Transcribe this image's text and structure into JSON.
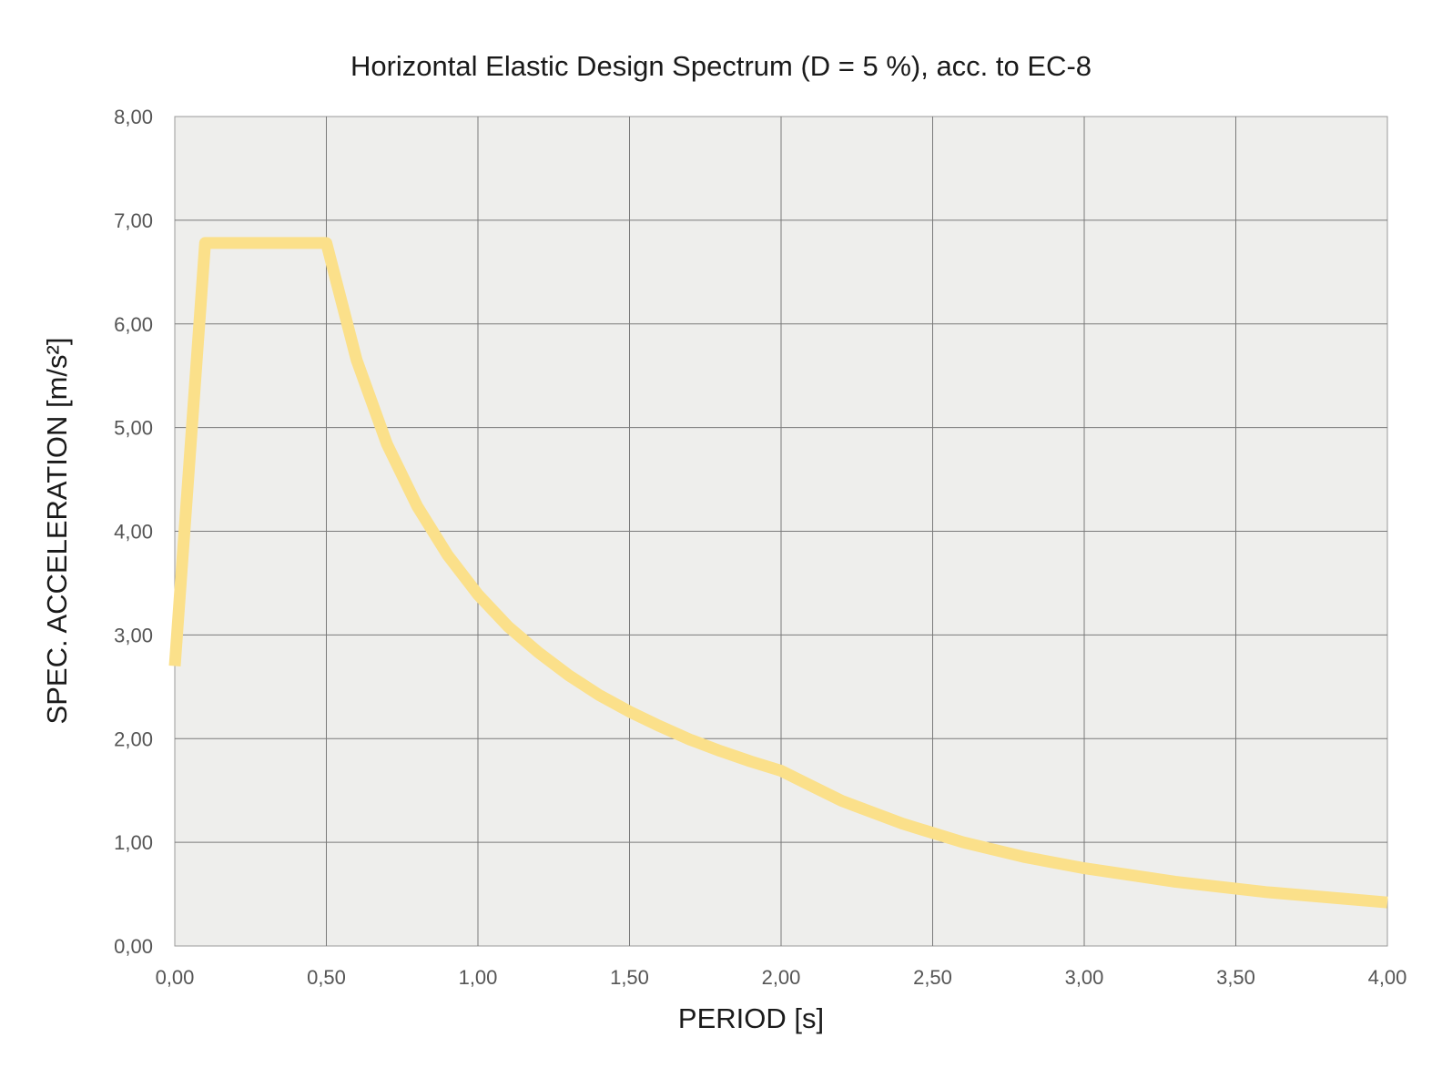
{
  "chart_data": {
    "type": "line",
    "title": "Horizontal Elastic Design Spectrum (D = 5 %), acc. to EC-8",
    "xlabel": "PERIOD [s]",
    "ylabel": "SPEC. ACCELERATION [m/s²]",
    "xlim": [
      0,
      4
    ],
    "ylim": [
      0,
      8
    ],
    "x_ticks": [
      "0,00",
      "0,50",
      "1,00",
      "1,50",
      "2,00",
      "2,50",
      "3,00",
      "3,50",
      "4,00"
    ],
    "y_ticks": [
      "0,00",
      "1,00",
      "2,00",
      "3,00",
      "4,00",
      "5,00",
      "6,00",
      "7,00",
      "8,00"
    ],
    "grid": true,
    "line_color": "#fbe08a",
    "series": [
      {
        "x": [
          0.0,
          0.1,
          0.5,
          0.6,
          0.7,
          0.8,
          0.9,
          1.0,
          1.1,
          1.2,
          1.3,
          1.4,
          1.5,
          1.6,
          1.7,
          1.8,
          1.9,
          2.0,
          2.2,
          2.4,
          2.6,
          2.8,
          3.0,
          3.3,
          3.6,
          4.0
        ],
        "y": [
          2.7,
          6.78,
          6.78,
          5.65,
          4.84,
          4.24,
          3.77,
          3.39,
          3.08,
          2.83,
          2.61,
          2.42,
          2.26,
          2.12,
          1.99,
          1.88,
          1.78,
          1.69,
          1.4,
          1.18,
          1.0,
          0.86,
          0.75,
          0.62,
          0.52,
          0.42
        ]
      }
    ]
  }
}
